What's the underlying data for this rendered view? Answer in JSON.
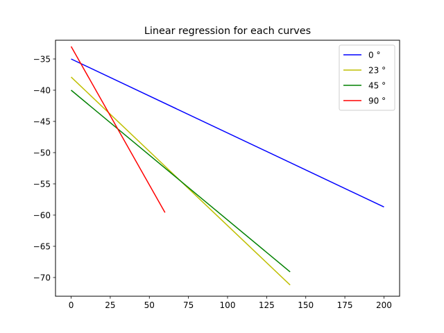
{
  "chart_data": {
    "type": "line",
    "title": "Linear regression for each curves",
    "xlabel": "",
    "ylabel": "",
    "xlim": [
      -10,
      210
    ],
    "ylim": [
      -73,
      -32
    ],
    "xticks": [
      0,
      25,
      50,
      75,
      100,
      125,
      150,
      175,
      200
    ],
    "xtick_labels": [
      "0",
      "25",
      "50",
      "75",
      "100",
      "125",
      "150",
      "175",
      "200"
    ],
    "yticks": [
      -35,
      -40,
      -45,
      -50,
      -55,
      -60,
      -65,
      -70
    ],
    "ytick_labels": [
      "−35",
      "−40",
      "−45",
      "−50",
      "−55",
      "−60",
      "−65",
      "−70"
    ],
    "grid": false,
    "legend_position": "top-right",
    "series": [
      {
        "name": "0 °",
        "color": "#0000ff",
        "x": [
          0,
          200
        ],
        "y": [
          -35.0,
          -58.7
        ]
      },
      {
        "name": "23 °",
        "color": "#bfbf00",
        "x": [
          0,
          140
        ],
        "y": [
          -37.9,
          -71.2
        ]
      },
      {
        "name": "45 °",
        "color": "#008000",
        "x": [
          0,
          140
        ],
        "y": [
          -40.0,
          -69.1
        ]
      },
      {
        "name": "90 °",
        "color": "#ff0000",
        "x": [
          0,
          60
        ],
        "y": [
          -33.0,
          -59.6
        ]
      }
    ]
  }
}
